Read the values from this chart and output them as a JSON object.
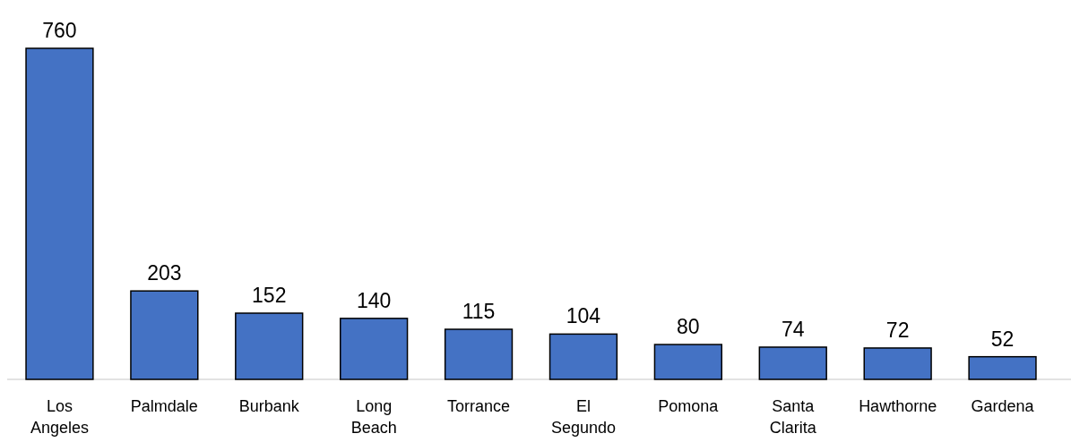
{
  "chart_data": {
    "type": "bar",
    "categories": [
      "Los Angeles",
      "Palmdale",
      "Burbank",
      "Long Beach",
      "Torrance",
      "El Segundo",
      "Pomona",
      "Santa Clarita",
      "Hawthorne",
      "Gardena"
    ],
    "values": [
      760,
      203,
      152,
      140,
      115,
      104,
      80,
      74,
      72,
      52
    ],
    "color": "#4472c4",
    "data_labels": true
  }
}
